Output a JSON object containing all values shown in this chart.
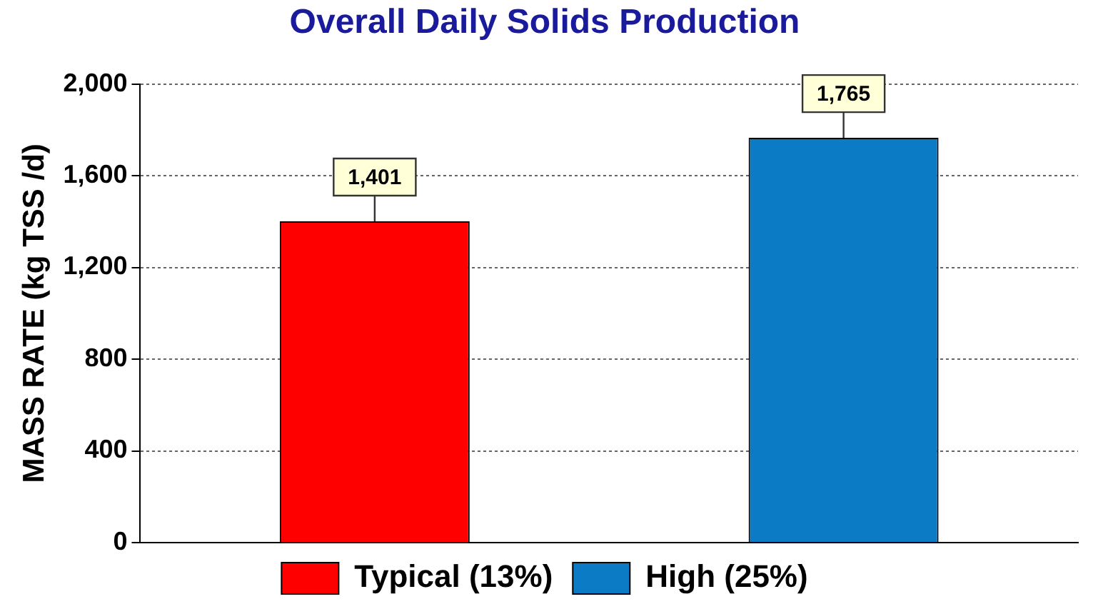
{
  "chart_data": {
    "type": "bar",
    "title": "Overall Daily Solids Production",
    "ylabel": "MASS RATE (kg TSS /d)",
    "categories": [
      null,
      null
    ],
    "series": [
      {
        "name": "Typical (13%)",
        "color": "#ff0000",
        "values": [
          1401,
          null
        ],
        "value_labels": [
          "1,401",
          null
        ]
      },
      {
        "name": "High (25%)",
        "color": "#0a7bc4",
        "values": [
          null,
          1765
        ],
        "value_labels": [
          null,
          "1,765"
        ]
      }
    ],
    "ylim": [
      0,
      2000
    ],
    "yticks": [
      0,
      {
        "value": 400,
        "label": "400"
      },
      {
        "value": 800,
        "label": "800"
      },
      {
        "value": 1200,
        "label": "1,200"
      },
      {
        "value": 1600,
        "label": "1,600"
      },
      {
        "value": 2000,
        "label": "2,000"
      }
    ],
    "grid": "y",
    "legend": "bottom"
  }
}
